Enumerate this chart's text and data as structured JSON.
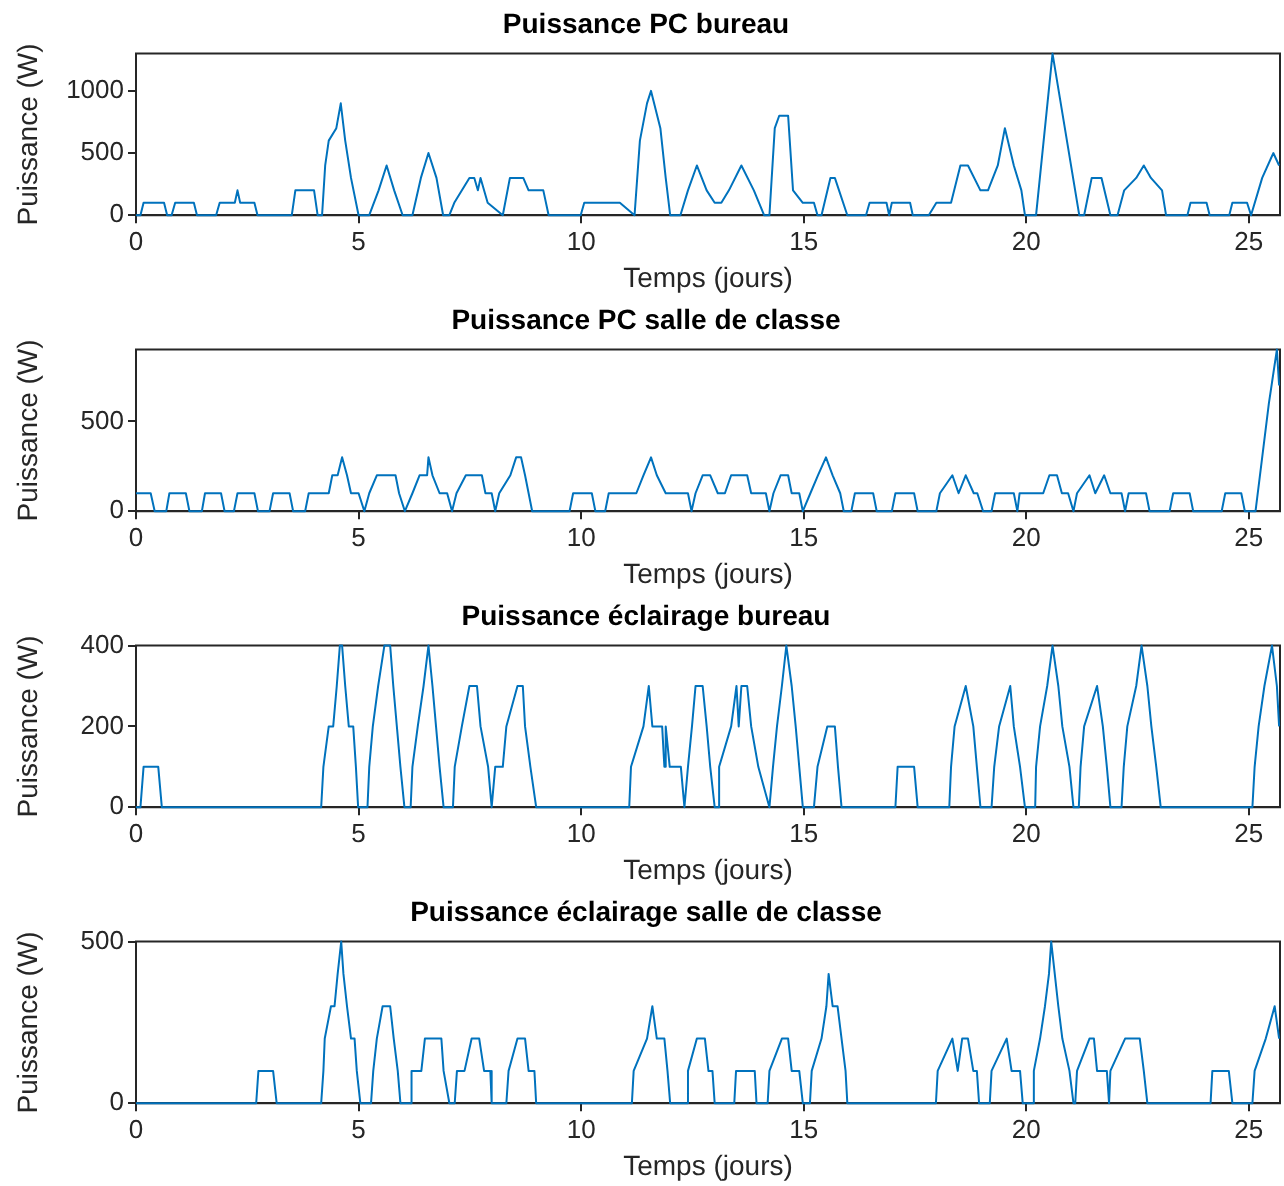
{
  "chart_data": [
    {
      "type": "line",
      "title": "Puissance PC bureau",
      "xlabel": "Temps (jours)",
      "ylabel": "Puissance (W)",
      "xlim": [
        0,
        25.7
      ],
      "xticks": [
        0,
        5,
        10,
        15,
        20,
        25
      ],
      "ylim": [
        0,
        1300
      ],
      "yticks": [
        0,
        500,
        1000
      ],
      "color": "#0072bd",
      "x": [
        0,
        0.1,
        0.17,
        0.63,
        0.7,
        0.8,
        0.88,
        1.3,
        1.37,
        1.8,
        1.88,
        2.22,
        2.28,
        2.34,
        2.66,
        2.73,
        3.5,
        3.58,
        4.0,
        4.08,
        4.18,
        4.25,
        4.33,
        4.5,
        4.6,
        4.7,
        4.83,
        5.0,
        5.24,
        5.45,
        5.63,
        5.8,
        5.99,
        6.21,
        6.4,
        6.57,
        6.75,
        6.9,
        7.04,
        7.15,
        7.49,
        7.6,
        7.68,
        7.74,
        7.9,
        8.24,
        8.4,
        8.7,
        8.82,
        9.15,
        9.27,
        9.99,
        10.07,
        10.87,
        11.2,
        11.32,
        11.48,
        11.57,
        11.78,
        11.9,
        12.0,
        12.23,
        12.4,
        12.6,
        12.82,
        13.0,
        13.15,
        13.32,
        13.6,
        13.88,
        14.11,
        14.23,
        14.35,
        14.45,
        14.65,
        14.76,
        14.98,
        15.23,
        15.31,
        15.4,
        15.6,
        15.7,
        15.98,
        16.4,
        16.48,
        16.86,
        16.92,
        16.98,
        17.39,
        17.45,
        17.81,
        17.98,
        18.31,
        18.52,
        18.69,
        18.97,
        19.14,
        19.36,
        19.52,
        19.72,
        19.89,
        19.97,
        20.22,
        20.59,
        21.19,
        21.3,
        21.47,
        21.69,
        21.89,
        22.05,
        22.2,
        22.47,
        22.64,
        22.8,
        23.05,
        23.14,
        23.62,
        23.69,
        24.05,
        24.12,
        24.56,
        24.63,
        24.96,
        25.05,
        25.3,
        25.55,
        25.68
      ],
      "values": [
        0,
        0,
        100,
        100,
        0,
        0,
        100,
        100,
        0,
        0,
        100,
        100,
        200,
        100,
        100,
        0,
        0,
        200,
        200,
        0,
        0,
        400,
        600,
        700,
        900,
        600,
        300,
        0,
        0,
        200,
        400,
        200,
        0,
        0,
        300,
        500,
        300,
        0,
        0,
        100,
        300,
        300,
        200,
        300,
        100,
        0,
        300,
        300,
        200,
        200,
        0,
        0,
        100,
        100,
        0,
        600,
        900,
        1000,
        700,
        300,
        0,
        0,
        200,
        400,
        200,
        100,
        100,
        200,
        400,
        200,
        0,
        0,
        700,
        800,
        800,
        200,
        100,
        100,
        0,
        0,
        300,
        300,
        0,
        0,
        100,
        100,
        0,
        100,
        100,
        0,
        0,
        100,
        100,
        400,
        400,
        200,
        200,
        400,
        700,
        400,
        200,
        0,
        0,
        1300,
        0,
        0,
        300,
        300,
        0,
        0,
        200,
        300,
        400,
        300,
        200,
        0,
        0,
        100,
        100,
        0,
        0,
        100,
        100,
        0,
        300,
        500,
        400
      ]
    },
    {
      "type": "line",
      "title": "Puissance PC salle de classe",
      "xlabel": "Temps (jours)",
      "ylabel": "Puissance (W)",
      "xlim": [
        0,
        25.7
      ],
      "xticks": [
        0,
        5,
        10,
        15,
        20,
        25
      ],
      "ylim": [
        0,
        900
      ],
      "yticks": [
        0,
        500
      ],
      "color": "#0072bd",
      "x": [
        0,
        0.33,
        0.42,
        0.68,
        0.75,
        1.12,
        1.2,
        1.48,
        1.55,
        1.91,
        1.99,
        2.2,
        2.28,
        2.66,
        2.74,
        3.0,
        3.08,
        3.45,
        3.53,
        3.8,
        3.88,
        4.33,
        4.41,
        4.53,
        4.63,
        4.74,
        4.83,
        5.0,
        5.13,
        5.24,
        5.41,
        5.83,
        5.91,
        6.04,
        6.21,
        6.37,
        6.54,
        6.57,
        6.66,
        6.82,
        6.99,
        7.1,
        7.2,
        7.41,
        7.77,
        7.85,
        7.99,
        8.07,
        8.16,
        8.41,
        8.54,
        8.65,
        8.74,
        8.82,
        8.9,
        9.74,
        9.82,
        10.24,
        10.32,
        10.54,
        10.62,
        11.04,
        11.24,
        11.4,
        11.57,
        11.7,
        11.9,
        12.4,
        12.48,
        12.57,
        12.73,
        12.9,
        13.07,
        13.23,
        13.37,
        13.73,
        13.82,
        14.15,
        14.23,
        14.32,
        14.48,
        14.65,
        14.73,
        14.9,
        14.98,
        15.15,
        15.32,
        15.5,
        15.65,
        15.82,
        15.9,
        16.07,
        16.15,
        16.56,
        16.64,
        16.98,
        17.06,
        17.48,
        17.56,
        17.98,
        18.06,
        18.34,
        18.48,
        18.64,
        18.82,
        18.9,
        19.03,
        19.22,
        19.3,
        19.72,
        19.8,
        19.85,
        20.38,
        20.52,
        20.69,
        20.8,
        20.94,
        21.06,
        21.14,
        21.42,
        21.55,
        21.75,
        21.89,
        22.14,
        22.22,
        22.3,
        22.69,
        22.77,
        23.22,
        23.3,
        23.67,
        23.75,
        24.39,
        24.47,
        24.83,
        24.91,
        25.15,
        25.3,
        25.45,
        25.63,
        25.68
      ],
      "values": [
        100,
        100,
        0,
        0,
        100,
        100,
        0,
        0,
        100,
        100,
        0,
        0,
        100,
        100,
        0,
        0,
        100,
        100,
        0,
        0,
        100,
        100,
        200,
        200,
        300,
        200,
        100,
        100,
        0,
        100,
        200,
        200,
        100,
        0,
        100,
        200,
        200,
        300,
        200,
        100,
        100,
        0,
        100,
        200,
        200,
        100,
        100,
        0,
        100,
        200,
        300,
        300,
        200,
        100,
        0,
        0,
        100,
        100,
        0,
        0,
        100,
        100,
        100,
        200,
        300,
        200,
        100,
        100,
        0,
        100,
        200,
        200,
        100,
        100,
        200,
        200,
        100,
        100,
        0,
        100,
        200,
        200,
        100,
        100,
        0,
        100,
        200,
        300,
        200,
        100,
        0,
        0,
        100,
        100,
        0,
        0,
        100,
        100,
        0,
        0,
        100,
        200,
        100,
        200,
        100,
        100,
        0,
        0,
        100,
        100,
        0,
        100,
        100,
        200,
        200,
        100,
        100,
        0,
        100,
        200,
        100,
        200,
        100,
        100,
        0,
        100,
        100,
        0,
        0,
        100,
        100,
        0,
        0,
        100,
        100,
        0,
        0,
        300,
        600,
        900,
        700
      ]
    },
    {
      "type": "line",
      "title": "Puissance éclairage bureau",
      "xlabel": "Temps (jours)",
      "ylabel": "Puissance (W)",
      "xlim": [
        0,
        25.7
      ],
      "xticks": [
        0,
        5,
        10,
        15,
        20,
        25
      ],
      "ylim": [
        0,
        400
      ],
      "yticks": [
        0,
        200,
        400
      ],
      "color": "#0072bd",
      "x": [
        0,
        0.1,
        0.17,
        0.5,
        0.58,
        4.16,
        4.21,
        4.33,
        4.43,
        4.51,
        4.58,
        4.63,
        4.7,
        4.78,
        4.88,
        4.94,
        4.99,
        5.2,
        5.24,
        5.32,
        5.44,
        5.58,
        5.71,
        5.78,
        5.86,
        5.94,
        6.03,
        6.17,
        6.21,
        6.33,
        6.46,
        6.57,
        6.66,
        6.74,
        6.82,
        6.91,
        7.12,
        7.16,
        7.32,
        7.49,
        7.66,
        7.74,
        7.91,
        7.99,
        8.07,
        8.24,
        8.32,
        8.57,
        8.69,
        8.74,
        8.86,
        8.99,
        11.08,
        11.12,
        11.4,
        11.52,
        11.6,
        11.82,
        11.87,
        11.9,
        11.99,
        12.24,
        12.32,
        12.4,
        12.49,
        12.57,
        12.73,
        12.82,
        12.9,
        13.0,
        13.1,
        13.1,
        13.37,
        13.49,
        13.54,
        13.6,
        13.73,
        13.82,
        13.98,
        14.23,
        14.31,
        14.4,
        14.51,
        14.61,
        14.73,
        14.82,
        14.9,
        14.98,
        15.23,
        15.31,
        15.53,
        15.7,
        15.77,
        15.85,
        17.06,
        17.11,
        17.48,
        17.56,
        18.27,
        18.31,
        18.39,
        18.64,
        18.81,
        18.89,
        18.97,
        19.22,
        19.28,
        19.39,
        19.64,
        19.72,
        19.86,
        19.97,
        20.2,
        20.22,
        20.31,
        20.47,
        20.59,
        20.72,
        20.81,
        20.97,
        21.06,
        21.18,
        21.22,
        21.3,
        21.59,
        21.72,
        21.81,
        21.89,
        22.14,
        22.19,
        22.27,
        22.47,
        22.59,
        22.72,
        22.81,
        22.92,
        23.02,
        25.08,
        25.13,
        25.22,
        25.35,
        25.52,
        25.63,
        25.68
      ],
      "values": [
        0,
        0,
        100,
        100,
        0,
        0,
        100,
        200,
        200,
        300,
        400,
        400,
        300,
        200,
        200,
        100,
        0,
        0,
        100,
        200,
        300,
        400,
        400,
        300,
        200,
        100,
        0,
        0,
        100,
        200,
        300,
        400,
        300,
        200,
        100,
        0,
        0,
        100,
        200,
        300,
        300,
        200,
        100,
        0,
        100,
        100,
        200,
        300,
        300,
        200,
        100,
        0,
        0,
        100,
        200,
        300,
        200,
        200,
        100,
        200,
        100,
        100,
        0,
        100,
        200,
        300,
        300,
        200,
        100,
        0,
        0,
        100,
        200,
        300,
        200,
        300,
        300,
        200,
        100,
        0,
        100,
        200,
        300,
        400,
        300,
        200,
        100,
        0,
        0,
        100,
        200,
        200,
        100,
        0,
        0,
        100,
        100,
        0,
        0,
        100,
        200,
        300,
        200,
        100,
        0,
        0,
        100,
        200,
        300,
        200,
        100,
        0,
        0,
        100,
        200,
        300,
        400,
        300,
        200,
        100,
        0,
        0,
        100,
        200,
        300,
        200,
        100,
        0,
        0,
        100,
        200,
        300,
        400,
        300,
        200,
        100,
        0,
        0,
        100,
        200,
        300,
        400,
        300,
        200
      ]
    },
    {
      "type": "line",
      "title": "Puissance éclairage salle de classe",
      "xlabel": "Temps (jours)",
      "ylabel": "Puissance (W)",
      "xlim": [
        0,
        25.7
      ],
      "xticks": [
        0,
        5,
        10,
        15,
        20,
        25
      ],
      "ylim": [
        0,
        500
      ],
      "yticks": [
        0,
        500
      ],
      "color": "#0072bd",
      "x": [
        0,
        2.7,
        2.75,
        3.08,
        3.16,
        4.16,
        4.21,
        4.24,
        4.38,
        4.46,
        4.53,
        4.61,
        4.66,
        4.74,
        4.83,
        4.91,
        4.96,
        5.04,
        5.28,
        5.33,
        5.41,
        5.54,
        5.71,
        5.79,
        5.88,
        5.94,
        6.16,
        6.19,
        6.41,
        6.49,
        6.86,
        6.91,
        7.04,
        7.16,
        7.21,
        7.38,
        7.54,
        7.71,
        7.82,
        7.96,
        7.99,
        8.32,
        8.37,
        8.57,
        8.74,
        8.82,
        8.95,
        8.99,
        11.14,
        11.18,
        11.48,
        11.6,
        11.7,
        11.87,
        11.94,
        12.0,
        12.36,
        12.4,
        12.6,
        12.78,
        12.86,
        12.95,
        13.0,
        13.44,
        13.48,
        13.9,
        13.94,
        14.19,
        14.23,
        14.51,
        14.65,
        14.73,
        14.9,
        14.98,
        15.14,
        15.18,
        15.4,
        15.51,
        15.56,
        15.65,
        15.76,
        15.85,
        15.94,
        15.98,
        17.97,
        18.01,
        18.34,
        18.46,
        18.56,
        18.69,
        18.81,
        18.89,
        18.94,
        19.18,
        19.22,
        19.56,
        19.67,
        19.86,
        19.92,
        20.14,
        20.17,
        20.31,
        20.42,
        20.51,
        20.56,
        20.64,
        20.72,
        20.81,
        20.97,
        21.06,
        21.1,
        21.14,
        21.42,
        21.52,
        21.59,
        21.81,
        21.86,
        21.89,
        22.22,
        22.55,
        22.64,
        22.72,
        24.14,
        24.18,
        24.55,
        24.63,
        25.08,
        25.13,
        25.38,
        25.58,
        25.68
      ],
      "values": [
        0,
        0,
        100,
        100,
        0,
        0,
        100,
        200,
        300,
        300,
        400,
        500,
        400,
        300,
        200,
        200,
        100,
        0,
        0,
        100,
        200,
        300,
        300,
        200,
        100,
        0,
        0,
        100,
        100,
        200,
        200,
        100,
        0,
        0,
        100,
        100,
        200,
        200,
        100,
        100,
        0,
        0,
        100,
        200,
        200,
        100,
        100,
        0,
        0,
        100,
        200,
        300,
        200,
        200,
        100,
        0,
        0,
        100,
        200,
        200,
        100,
        100,
        0,
        0,
        100,
        100,
        0,
        0,
        100,
        200,
        200,
        100,
        100,
        0,
        0,
        100,
        200,
        300,
        400,
        300,
        300,
        200,
        100,
        0,
        0,
        100,
        200,
        100,
        200,
        200,
        100,
        100,
        0,
        0,
        100,
        200,
        100,
        100,
        0,
        0,
        100,
        200,
        300,
        400,
        500,
        400,
        300,
        200,
        100,
        0,
        0,
        100,
        200,
        200,
        100,
        100,
        0,
        100,
        200,
        200,
        100,
        0,
        0,
        100,
        100,
        0,
        0,
        100,
        200,
        300,
        200
      ]
    }
  ]
}
